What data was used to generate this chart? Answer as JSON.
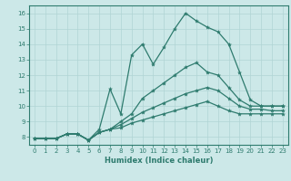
{
  "title": "",
  "xlabel": "Humidex (Indice chaleur)",
  "ylabel": "",
  "background_color": "#cce8e8",
  "line_color": "#2e7b6e",
  "grid_color": "#b0d4d4",
  "xlim": [
    -0.5,
    23.5
  ],
  "ylim": [
    7.5,
    16.5
  ],
  "xticks": [
    0,
    1,
    2,
    3,
    4,
    5,
    6,
    7,
    8,
    9,
    10,
    11,
    12,
    13,
    14,
    15,
    16,
    17,
    18,
    19,
    20,
    21,
    22,
    23
  ],
  "yticks": [
    8,
    9,
    10,
    11,
    12,
    13,
    14,
    15,
    16
  ],
  "series": [
    [
      7.9,
      7.9,
      7.9,
      8.2,
      8.2,
      7.8,
      8.5,
      11.1,
      9.5,
      13.3,
      14.0,
      12.7,
      13.8,
      15.0,
      16.0,
      15.5,
      15.1,
      14.8,
      14.0,
      12.2,
      10.4,
      10.0,
      10.0,
      10.0
    ],
    [
      7.9,
      7.9,
      7.9,
      8.2,
      8.2,
      7.8,
      8.3,
      8.5,
      9.0,
      9.5,
      10.5,
      11.0,
      11.5,
      12.0,
      12.5,
      12.8,
      12.2,
      12.0,
      11.2,
      10.4,
      10.0,
      10.0,
      10.0,
      10.0
    ],
    [
      7.9,
      7.9,
      7.9,
      8.2,
      8.2,
      7.8,
      8.3,
      8.5,
      8.8,
      9.2,
      9.6,
      9.9,
      10.2,
      10.5,
      10.8,
      11.0,
      11.2,
      11.0,
      10.5,
      10.0,
      9.8,
      9.8,
      9.7,
      9.7
    ],
    [
      7.9,
      7.9,
      7.9,
      8.2,
      8.2,
      7.8,
      8.3,
      8.5,
      8.6,
      8.9,
      9.1,
      9.3,
      9.5,
      9.7,
      9.9,
      10.1,
      10.3,
      10.0,
      9.7,
      9.5,
      9.5,
      9.5,
      9.5,
      9.5
    ]
  ]
}
